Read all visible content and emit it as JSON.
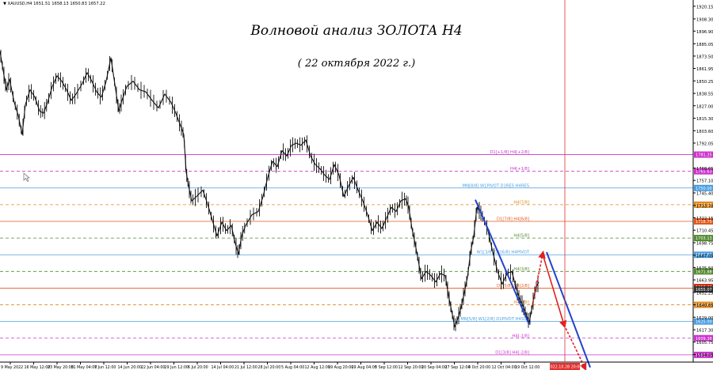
{
  "chart_data": {
    "type": "line",
    "symbol_info": "XAUUSD,H4  1651.51 1658.13 1650.83 1657.22",
    "title": "Волновой анализ ЗОЛОТА Н4",
    "subtitle": "( 22 октября 2022 г.)",
    "ylim": [
      1587,
      1926
    ],
    "y_ticks": [
      1920.15,
      1908.3,
      1896.9,
      1885.05,
      1873.5,
      1861.95,
      1850.25,
      1838.55,
      1827.0,
      1815.3,
      1803.6,
      1792.05,
      1768.65,
      1757.1,
      1745.4,
      1733.7,
      1722.15,
      1710.45,
      1698.75,
      1687.05,
      1675.5,
      1663.95,
      1652.25,
      1640.65,
      1629.0,
      1617.3,
      1605.75,
      1594.05,
      1582.35
    ],
    "x_ticks": [
      "9 May 2022",
      "16 May 12:00",
      "23 May 20:00",
      "31 May 04:00",
      "7 Jun 12:00",
      "14 Jun 20:00",
      "22 Jun 04:00",
      "29 Jun 12:00",
      "6 Jul 20:00",
      "14 Jul 04:00",
      "21 Jul 12:00",
      "28 Jul 20:00",
      "5 Aug 04:00",
      "12 Aug 12:00",
      "19 Aug 20:00",
      "29 Aug 04:00",
      "5 Sep 12:00",
      "12 Sep 20:00",
      "20 Sep 04:00",
      "27 Sep 12:00",
      "4 Oct 20:00",
      "12 Oct 04:00",
      "19 Oct 12:00"
    ],
    "x_highlight": "2022.10.28 20:00",
    "price_path": [
      [
        0,
        1878
      ],
      [
        4,
        1860
      ],
      [
        8,
        1842
      ],
      [
        12,
        1852
      ],
      [
        18,
        1830
      ],
      [
        23,
        1818
      ],
      [
        28,
        1800
      ],
      [
        32,
        1828
      ],
      [
        38,
        1842
      ],
      [
        44,
        1835
      ],
      [
        50,
        1822
      ],
      [
        55,
        1820
      ],
      [
        60,
        1830
      ],
      [
        66,
        1845
      ],
      [
        72,
        1855
      ],
      [
        78,
        1850
      ],
      [
        84,
        1842
      ],
      [
        90,
        1832
      ],
      [
        96,
        1838
      ],
      [
        104,
        1848
      ],
      [
        110,
        1858
      ],
      [
        116,
        1850
      ],
      [
        122,
        1840
      ],
      [
        128,
        1835
      ],
      [
        134,
        1850
      ],
      [
        140,
        1872
      ],
      [
        146,
        1842
      ],
      [
        150,
        1822
      ],
      [
        154,
        1832
      ],
      [
        160,
        1845
      ],
      [
        168,
        1850
      ],
      [
        176,
        1842
      ],
      [
        184,
        1840
      ],
      [
        192,
        1832
      ],
      [
        200,
        1825
      ],
      [
        208,
        1838
      ],
      [
        216,
        1830
      ],
      [
        222,
        1820
      ],
      [
        228,
        1808
      ],
      [
        232,
        1800
      ],
      [
        235,
        1765
      ],
      [
        238,
        1752
      ],
      [
        242,
        1738
      ],
      [
        248,
        1742
      ],
      [
        256,
        1748
      ],
      [
        262,
        1735
      ],
      [
        268,
        1720
      ],
      [
        274,
        1705
      ],
      [
        280,
        1718
      ],
      [
        286,
        1710
      ],
      [
        292,
        1715
      ],
      [
        297,
        1698
      ],
      [
        301,
        1688
      ],
      [
        305,
        1705
      ],
      [
        310,
        1715
      ],
      [
        318,
        1725
      ],
      [
        326,
        1728
      ],
      [
        332,
        1742
      ],
      [
        338,
        1760
      ],
      [
        344,
        1775
      ],
      [
        350,
        1770
      ],
      [
        356,
        1785
      ],
      [
        362,
        1780
      ],
      [
        368,
        1790
      ],
      [
        374,
        1792
      ],
      [
        380,
        1790
      ],
      [
        386,
        1795
      ],
      [
        392,
        1780
      ],
      [
        398,
        1772
      ],
      [
        404,
        1768
      ],
      [
        410,
        1762
      ],
      [
        416,
        1758
      ],
      [
        422,
        1772
      ],
      [
        428,
        1762
      ],
      [
        434,
        1742
      ],
      [
        440,
        1752
      ],
      [
        446,
        1760
      ],
      [
        452,
        1748
      ],
      [
        458,
        1738
      ],
      [
        464,
        1725
      ],
      [
        470,
        1710
      ],
      [
        476,
        1718
      ],
      [
        482,
        1712
      ],
      [
        488,
        1722
      ],
      [
        494,
        1732
      ],
      [
        500,
        1728
      ],
      [
        506,
        1738
      ],
      [
        512,
        1740
      ],
      [
        516,
        1732
      ],
      [
        520,
        1712
      ],
      [
        524,
        1698
      ],
      [
        528,
        1682
      ],
      [
        532,
        1665
      ],
      [
        538,
        1672
      ],
      [
        544,
        1668
      ],
      [
        550,
        1662
      ],
      [
        556,
        1670
      ],
      [
        562,
        1668
      ],
      [
        566,
        1650
      ],
      [
        570,
        1635
      ],
      [
        574,
        1620
      ],
      [
        578,
        1628
      ],
      [
        582,
        1638
      ],
      [
        586,
        1652
      ],
      [
        590,
        1666
      ],
      [
        594,
        1690
      ],
      [
        598,
        1705
      ],
      [
        602,
        1732
      ],
      [
        606,
        1728
      ],
      [
        610,
        1722
      ],
      [
        616,
        1710
      ],
      [
        622,
        1690
      ],
      [
        628,
        1672
      ],
      [
        634,
        1660
      ],
      [
        640,
        1670
      ],
      [
        646,
        1672
      ],
      [
        652,
        1655
      ],
      [
        656,
        1646
      ],
      [
        660,
        1640
      ],
      [
        664,
        1632
      ],
      [
        668,
        1624
      ],
      [
        672,
        1640
      ],
      [
        676,
        1656
      ],
      [
        680,
        1662
      ]
    ],
    "wave_levels": [
      {
        "label": "D1[+1/8] H4[+2/8]",
        "price": 1781.25,
        "tag": "1781.25",
        "color": "#cc33cc",
        "style": "solid"
      },
      {
        "label": "H4[+1/8]",
        "price": 1765.63,
        "tag": "1765.63",
        "color": "#cc33cc",
        "style": "dash"
      },
      {
        "label": "MN[8/8] W1PIVOT D1RES H4RES",
        "price": 1750.0,
        "tag": "1750.00",
        "color": "#4a9ee0",
        "style": "solid"
      },
      {
        "label": "H4[7/8]",
        "price": 1734.38,
        "tag": "1734.38",
        "color": "#e08a1e",
        "style": "dash"
      },
      {
        "label": "D1[7/8] H4[6/8]",
        "price": 1718.75,
        "tag": "1718.75",
        "color": "#e05a1e",
        "style": "solid"
      },
      {
        "label": "H4[5/8]",
        "price": 1703.13,
        "tag": "1703.13",
        "color": "#558a33",
        "style": "dash"
      },
      {
        "label": "W1[3/8] D1[6/8] H4PIVOT",
        "price": 1687.5,
        "tag": "1687.50",
        "color": "#4a9ee0",
        "style": "solid"
      },
      {
        "label": "H4[3/8]",
        "price": 1671.88,
        "tag": "1671.88",
        "color": "#558a33",
        "style": "dash"
      },
      {
        "label": "D1[5/8] H4[2/8]",
        "price": 1656.25,
        "tag": "1656.25",
        "color": "#e05a1e",
        "style": "solid"
      },
      {
        "label": "H4[1/8]",
        "price": 1640.63,
        "tag": "1640.63",
        "color": "#e08a1e",
        "style": "dash"
      },
      {
        "label": "MN[5/8] W1[2/8] D1PIVOT H4SUP",
        "price": 1625.0,
        "tag": "1625.00",
        "color": "#4a9ee0",
        "style": "solid"
      },
      {
        "label": "H4[-1/8]",
        "price": 1609.38,
        "tag": "1609.38",
        "color": "#cc33cc",
        "style": "dash"
      },
      {
        "label": "D1[3/8] H4[-2/8]",
        "price": 1593.75,
        "tag": "1593.75",
        "color": "#cc33cc",
        "style": "solid"
      }
    ],
    "current_price_tags": [
      "1657.22",
      "1655.07"
    ],
    "channel_lines": [
      {
        "color": "#2244cc",
        "from": [
          600,
          1739
        ],
        "to": [
          668,
          1622
        ]
      },
      {
        "color": "#2244cc",
        "from": [
          690,
          1690
        ],
        "to": [
          745,
          1582
        ]
      }
    ],
    "forecast": [
      {
        "from": [
          672,
          1640
        ],
        "to": [
          685,
          1688
        ],
        "style": "dash",
        "color": "#e02020"
      },
      {
        "from": [
          685,
          1688
        ],
        "to": [
          712,
          1622
        ],
        "style": "solid",
        "color": "#e02020"
      },
      {
        "from": [
          712,
          1622
        ],
        "to": [
          738,
          1582
        ],
        "style": "dash",
        "color": "#e02020"
      }
    ]
  }
}
